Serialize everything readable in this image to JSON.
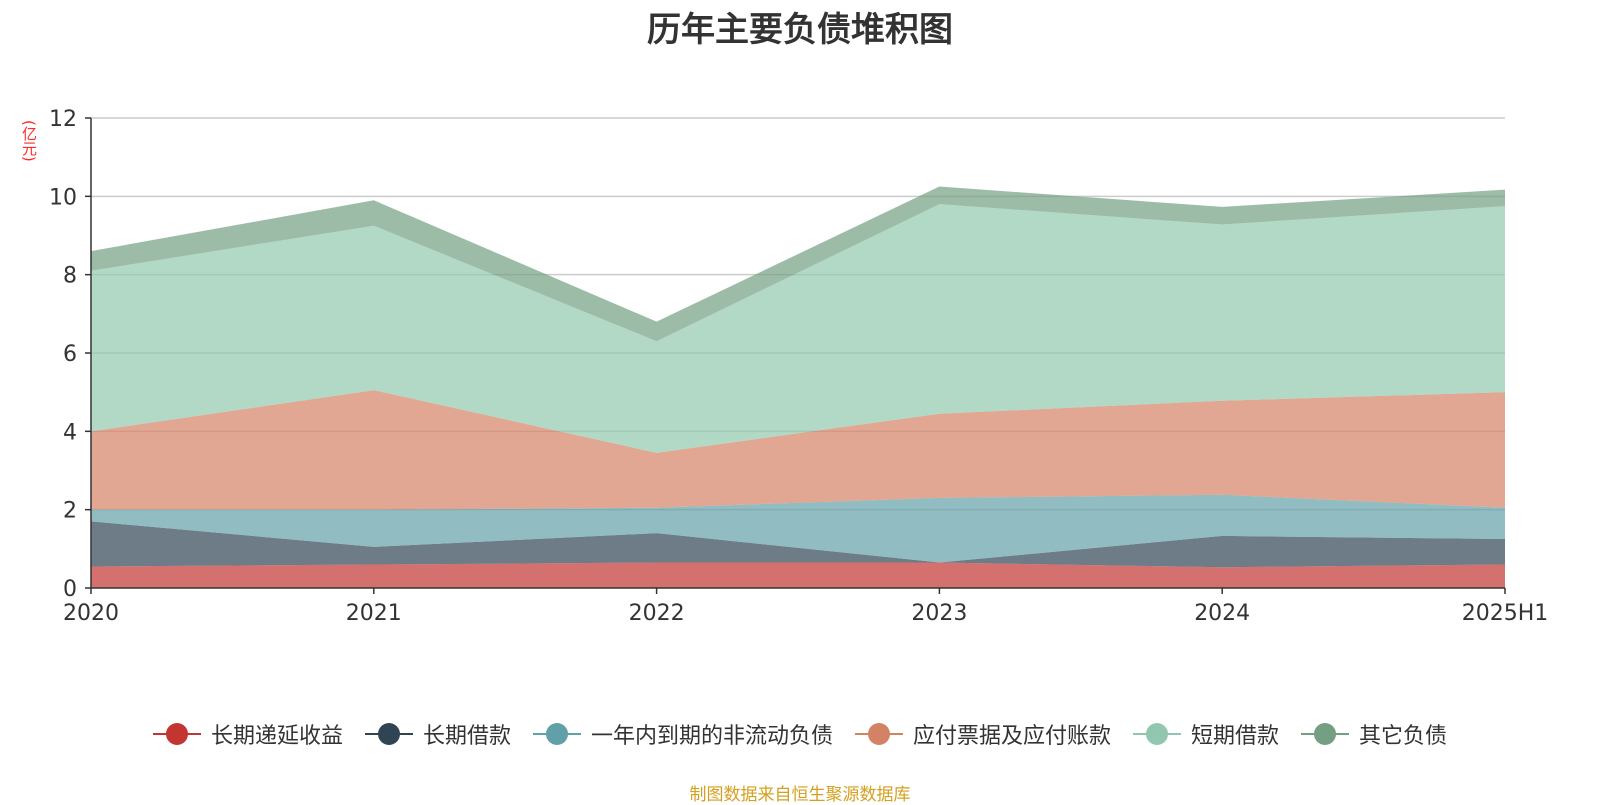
{
  "chart_data": {
    "type": "area",
    "stacked": true,
    "title": "历年主要负债堆积图",
    "unit": "(亿元)",
    "categories": [
      "2020",
      "2021",
      "2022",
      "2023",
      "2024",
      "2025H1"
    ],
    "ylim": [
      0,
      12
    ],
    "yticks": [
      "0",
      "2",
      "4",
      "6",
      "8",
      "10",
      "12"
    ],
    "grid": true,
    "legend_position": "bottom",
    "series": [
      {
        "name": "长期递延收益",
        "color": "#c23531",
        "values": [
          0.55,
          0.6,
          0.65,
          0.65,
          0.53,
          0.6
        ]
      },
      {
        "name": "长期借款",
        "color": "#2f4554",
        "values": [
          1.15,
          0.45,
          0.75,
          0.0,
          0.8,
          0.65
        ]
      },
      {
        "name": "一年内到期的非流动负债",
        "color": "#61a0a8",
        "values": [
          0.3,
          0.95,
          0.65,
          1.65,
          1.05,
          0.8
        ]
      },
      {
        "name": "应付票据及应付账款",
        "color": "#d48265",
        "values": [
          2.0,
          3.05,
          1.4,
          2.15,
          2.4,
          2.95
        ]
      },
      {
        "name": "短期借款",
        "color": "#91c7ae",
        "values": [
          4.1,
          4.2,
          2.85,
          5.35,
          4.5,
          4.75
        ]
      },
      {
        "name": "其它负债",
        "color": "#749f83",
        "values": [
          0.5,
          0.65,
          0.5,
          0.45,
          0.45,
          0.42
        ]
      }
    ]
  },
  "source": "制图数据来自恒生聚源数据库"
}
